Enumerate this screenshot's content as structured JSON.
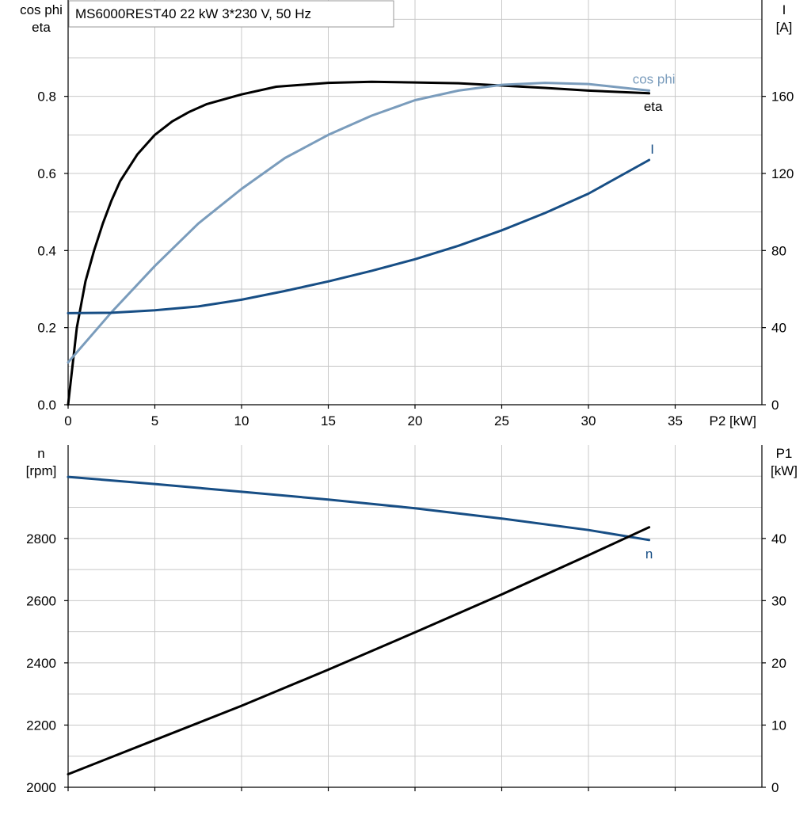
{
  "chart_data": [
    {
      "type": "line",
      "title": "MS6000REST40   22 kW   3*230 V, 50 Hz",
      "xlabel": "P2 [kW]",
      "xlim": [
        0,
        40
      ],
      "xticks": [
        0,
        5,
        10,
        15,
        20,
        25,
        30,
        35
      ],
      "ylabel_left": [
        "cos phi",
        "eta"
      ],
      "ylim_left": [
        0,
        1.05
      ],
      "yticks_left": [
        0.0,
        0.2,
        0.4,
        0.6,
        0.8
      ],
      "ytick_labels_left": [
        "0.0",
        "0.2",
        "0.4",
        "0.6",
        "0.8"
      ],
      "ylabel_right": [
        "I",
        "[A]"
      ],
      "ylim_right": [
        0,
        210
      ],
      "yticks_right": [
        0,
        40,
        80,
        120,
        160
      ],
      "grid": true,
      "series": [
        {
          "name": "eta",
          "axis": "left",
          "color": "#000000",
          "x": [
            0,
            0.5,
            1,
            1.5,
            2,
            2.5,
            3,
            4,
            5,
            6,
            7,
            8,
            10,
            12,
            15,
            17.5,
            20,
            22.5,
            25,
            27.5,
            30,
            33.5
          ],
          "y": [
            0,
            0.2,
            0.32,
            0.4,
            0.47,
            0.53,
            0.58,
            0.65,
            0.7,
            0.735,
            0.76,
            0.78,
            0.805,
            0.825,
            0.835,
            0.838,
            0.836,
            0.834,
            0.828,
            0.822,
            0.815,
            0.808
          ]
        },
        {
          "name": "cos phi",
          "axis": "left",
          "color": "#7a9cbc",
          "x": [
            0,
            2.5,
            5,
            7.5,
            10,
            12.5,
            15,
            17.5,
            20,
            22.5,
            25,
            27.5,
            30,
            33.5
          ],
          "y": [
            0.11,
            0.24,
            0.36,
            0.47,
            0.56,
            0.64,
            0.7,
            0.75,
            0.79,
            0.815,
            0.83,
            0.835,
            0.832,
            0.815
          ]
        },
        {
          "name": "I",
          "axis": "right",
          "color": "#174e85",
          "x": [
            0,
            2.5,
            5,
            7.5,
            10,
            12.5,
            15,
            17.5,
            20,
            22.5,
            25,
            27.5,
            30,
            33.5
          ],
          "y": [
            47.5,
            47.7,
            49,
            51,
            54.5,
            59,
            64,
            69.5,
            75.5,
            82.5,
            90.5,
            99.5,
            109.5,
            127
          ]
        }
      ]
    },
    {
      "type": "line",
      "xlabel": "",
      "xlim": [
        0,
        40
      ],
      "xticks": [
        0,
        5,
        10,
        15,
        20,
        25,
        30,
        35
      ],
      "ylabel_left": [
        "n",
        "[rpm]"
      ],
      "ylim_left": [
        2000,
        3100
      ],
      "yticks_left": [
        2000,
        2200,
        2400,
        2600,
        2800
      ],
      "ylabel_right": [
        "P1",
        "[kW]"
      ],
      "ylim_right": [
        0,
        55
      ],
      "yticks_right": [
        0,
        10,
        20,
        30,
        40
      ],
      "grid": true,
      "series": [
        {
          "name": "n",
          "axis": "left",
          "color": "#174e85",
          "x": [
            0,
            5,
            10,
            15,
            20,
            25,
            30,
            33.5
          ],
          "y": [
            2998,
            2975,
            2950,
            2925,
            2897,
            2864,
            2827,
            2795
          ]
        },
        {
          "name": "",
          "axis": "right",
          "color": "#000000",
          "x": [
            0,
            5,
            10,
            15,
            20,
            25,
            30,
            33.5
          ],
          "y": [
            2.1,
            7.6,
            13.1,
            18.9,
            24.9,
            31.0,
            37.3,
            41.8
          ]
        }
      ]
    }
  ]
}
